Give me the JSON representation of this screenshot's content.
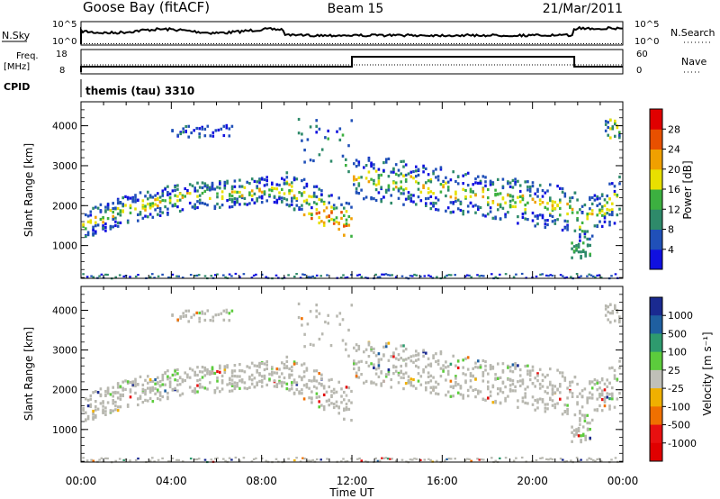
{
  "header": {
    "station": "Goose Bay (fitACF)",
    "beam": "Beam 15",
    "date": "21/Mar/2011"
  },
  "summary": {
    "nsky_label": "N.Sky",
    "nsearch_label": "N.Search",
    "nsky_ticks": [
      "10^5",
      "10^0"
    ],
    "nsearch_ticks": [
      "10^5",
      "10^0"
    ],
    "freq_label_1": "Freq.",
    "freq_label_2": "[MHz]",
    "freq_ticks": [
      "18",
      "8"
    ],
    "nave_label": "Nave",
    "nave_ticks": [
      "60",
      "0"
    ],
    "cpid_label": "CPID",
    "cpid_text": "themis (tau) 3310"
  },
  "chart_data": [
    {
      "type": "heatmap",
      "title": "",
      "ylabel": "Slant Range [km]",
      "xlabel": "",
      "yticks": [
        "1000",
        "2000",
        "3000",
        "4000"
      ],
      "xticks": [
        "00:00",
        "04:00",
        "08:00",
        "12:00",
        "16:00",
        "20:00",
        "00:00"
      ],
      "xlim": [
        0,
        24
      ],
      "ylim": [
        180,
        4600
      ],
      "colorbar": {
        "label": "Power [dB]",
        "ticks": [
          "4",
          "8",
          "12",
          "16",
          "20",
          "24",
          "28"
        ],
        "colors": [
          "#1010e0",
          "#2050b8",
          "#2e8a6a",
          "#3cb040",
          "#e8e000",
          "#f0a000",
          "#e85000",
          "#e00000"
        ]
      }
    },
    {
      "type": "heatmap",
      "title": "",
      "ylabel": "Slant Range [km]",
      "xlabel": "Time UT",
      "yticks": [
        "1000",
        "2000",
        "3000",
        "4000"
      ],
      "xticks": [
        "00:00",
        "04:00",
        "08:00",
        "12:00",
        "16:00",
        "20:00",
        "00:00"
      ],
      "xlim": [
        0,
        24
      ],
      "ylim": [
        180,
        4600
      ],
      "colorbar": {
        "label": "Velocity [m s⁻¹]",
        "ticks": [
          "1000",
          "500",
          "100",
          "25",
          "-25",
          "-100",
          "-500",
          "-1000"
        ],
        "colors": [
          "#1a2a90",
          "#1f5fa0",
          "#2e9a6e",
          "#5ccc3c",
          "#c0c0b8",
          "#f0b000",
          "#f07000",
          "#e81010",
          "#e00000"
        ]
      }
    }
  ],
  "colors": {
    "ground_scatter": "#b8b8b0",
    "axis": "#000000"
  }
}
